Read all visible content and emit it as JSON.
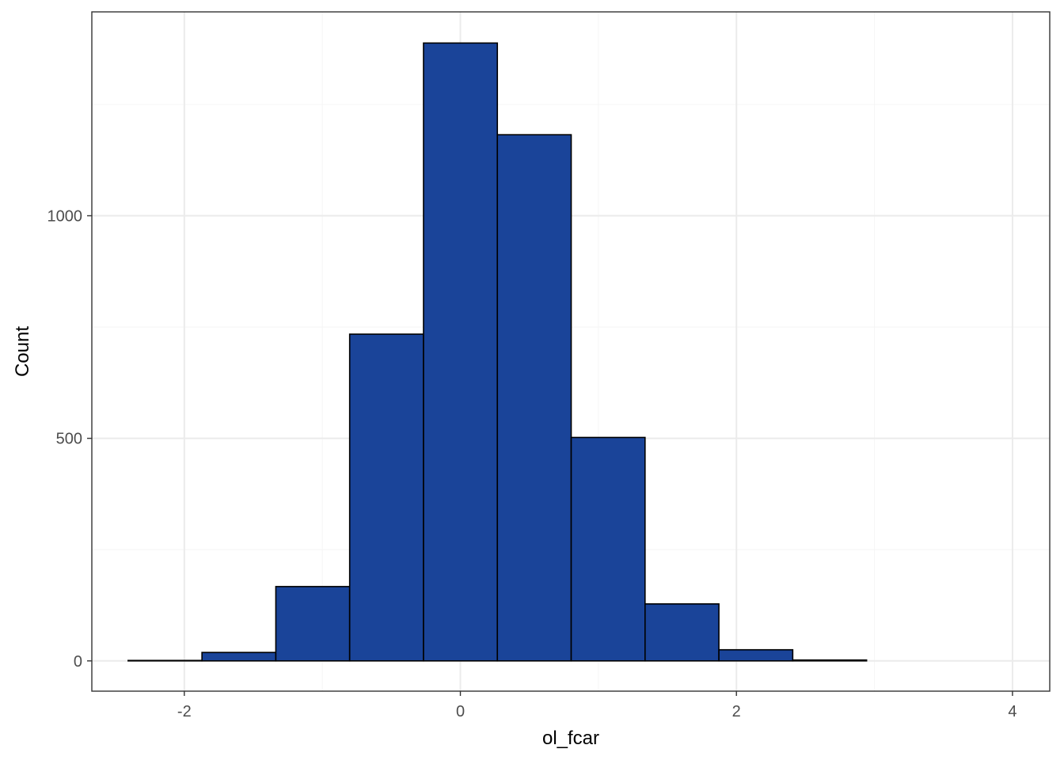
{
  "chart_data": {
    "type": "bar",
    "subtype": "histogram",
    "title": "",
    "xlabel": "ol_fcar",
    "ylabel": "Count",
    "bins": [
      {
        "x_start": -2.407,
        "x_end": -1.872,
        "count": 1
      },
      {
        "x_start": -1.872,
        "x_end": -1.337,
        "count": 19
      },
      {
        "x_start": -1.337,
        "x_end": -0.802,
        "count": 167
      },
      {
        "x_start": -0.802,
        "x_end": -0.267,
        "count": 734
      },
      {
        "x_start": -0.267,
        "x_end": 0.268,
        "count": 1388
      },
      {
        "x_start": 0.268,
        "x_end": 0.803,
        "count": 1182
      },
      {
        "x_start": 0.803,
        "x_end": 1.338,
        "count": 502
      },
      {
        "x_start": 1.338,
        "x_end": 1.873,
        "count": 128
      },
      {
        "x_start": 1.873,
        "x_end": 2.408,
        "count": 25
      },
      {
        "x_start": 2.408,
        "x_end": 2.943,
        "count": 2
      },
      {
        "x_start": 2.943,
        "x_end": 3.478,
        "count": 0
      },
      {
        "x_start": 3.478,
        "x_end": 4.013,
        "count": 0
      }
    ],
    "xlim": [
      -2.67,
      4.27
    ],
    "ylim": [
      -68,
      1458
    ],
    "x_ticks": [
      -2,
      0,
      2,
      4
    ],
    "x_tick_labels": [
      "-2",
      "0",
      "2",
      "4"
    ],
    "y_ticks": [
      0,
      500,
      1000
    ],
    "y_tick_labels": [
      "0",
      "500",
      "1000"
    ],
    "y_minor_ticks": [
      250,
      750,
      1250
    ],
    "x_minor_ticks": [
      -1,
      1,
      3
    ],
    "grid": true,
    "legend": "none",
    "colors": {
      "bar_fill": "#1A4499",
      "bar_stroke": "#000000",
      "grid_major": "#EBEBEB",
      "grid_minor": "#F5F5F5",
      "panel_border": "#333333"
    }
  }
}
